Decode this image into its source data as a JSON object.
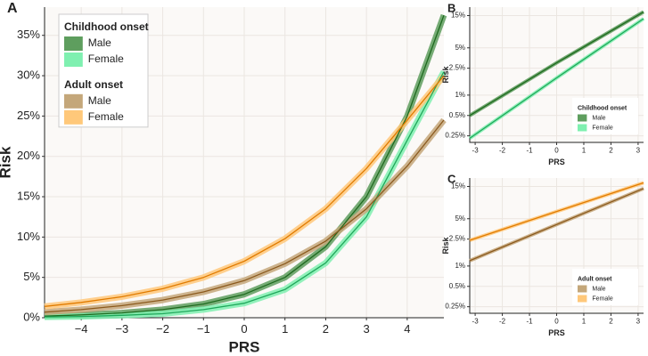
{
  "chart_data": [
    {
      "type": "line",
      "label": "A",
      "xlabel": "PRS",
      "ylabel": "Risk",
      "x": [
        -4.9,
        -4,
        -3,
        -2,
        -1,
        0,
        1,
        2,
        3,
        4,
        4.9
      ],
      "xlim": [
        -4.9,
        4.9
      ],
      "xticks": [
        {
          "value": -4,
          "label": "−4"
        },
        {
          "value": -3,
          "label": "−3"
        },
        {
          "value": -2,
          "label": "−2"
        },
        {
          "value": -1,
          "label": "−1"
        },
        0,
        1,
        2,
        3,
        4
      ],
      "ylim": [
        0,
        38.5
      ],
      "yticks": [
        {
          "value": 0,
          "label": "0%"
        },
        {
          "value": 5,
          "label": "5%"
        },
        {
          "value": 10,
          "label": "10%"
        },
        {
          "value": 15,
          "label": "15%"
        },
        {
          "value": 20,
          "label": "20%"
        },
        {
          "value": 25,
          "label": "25%"
        },
        {
          "value": 30,
          "label": "30%"
        },
        {
          "value": 35,
          "label": "35%"
        }
      ],
      "grid": true,
      "legend": "top-left",
      "series_groups": [
        {
          "title": "Childhood onset",
          "series": [
            {
              "name": "Male",
              "color": "#1f6b1f",
              "band_color": "#5e9e5e",
              "values": [
                0.2,
                0.35,
                0.6,
                1.0,
                1.7,
                2.9,
                5.0,
                8.8,
                15,
                25,
                37.5
              ]
            },
            {
              "name": "Female",
              "color": "#1fa85a",
              "band_color": "#7ff0b0",
              "values": [
                0.1,
                0.15,
                0.3,
                0.5,
                1.0,
                1.8,
                3.5,
                6.8,
                12.5,
                22,
                30.5
              ]
            }
          ]
        },
        {
          "title": "Adult onset",
          "series": [
            {
              "name": "Male",
              "color": "#8b5a1e",
              "band_color": "#c4a77a",
              "values": [
                0.7,
                1.0,
                1.5,
                2.2,
                3.2,
                4.6,
                6.7,
                9.5,
                13.5,
                18.8,
                24.5
              ]
            },
            {
              "name": "Female",
              "color": "#e07b00",
              "band_color": "#ffc87a",
              "values": [
                1.4,
                1.9,
                2.6,
                3.6,
                5.0,
                7.0,
                9.8,
                13.5,
                18.5,
                24.5,
                30
              ]
            }
          ]
        }
      ]
    },
    {
      "type": "line",
      "label": "B",
      "xlabel": "PRS",
      "ylabel": "Risk",
      "log_y": true,
      "x": [
        -3.2,
        0,
        3.2
      ],
      "xlim": [
        -3.2,
        3.2
      ],
      "xticks": [
        -3,
        -2,
        -1,
        0,
        1,
        2,
        3
      ],
      "ylim": [
        0.2,
        20
      ],
      "yticks": [
        {
          "value": 0.25,
          "label": "0.25%"
        },
        {
          "value": 0.5,
          "label": "0.5%"
        },
        {
          "value": 1,
          "label": "1%"
        },
        {
          "value": 2.5,
          "label": "2.5%"
        },
        {
          "value": 5,
          "label": "5%"
        },
        {
          "value": 15,
          "label": "15%"
        }
      ],
      "grid": true,
      "legend": "bottom-right",
      "series_groups": [
        {
          "title": "Childhood onset",
          "series": [
            {
              "name": "Male",
              "color": "#1f6b1f",
              "band_color": "#5e9e5e",
              "values": [
                0.5,
                3.0,
                17
              ]
            },
            {
              "name": "Female",
              "color": "#1fa85a",
              "band_color": "#7ff0b0",
              "values": [
                0.23,
                1.8,
                13.5
              ]
            }
          ]
        }
      ]
    },
    {
      "type": "line",
      "label": "C",
      "xlabel": "PRS",
      "ylabel": "Risk",
      "log_y": true,
      "x": [
        -3.2,
        0,
        3.2
      ],
      "xlim": [
        -3.2,
        3.2
      ],
      "xticks": [
        -3,
        -2,
        -1,
        0,
        1,
        2,
        3
      ],
      "ylim": [
        0.2,
        20
      ],
      "yticks": [
        {
          "value": 0.25,
          "label": "0.25%"
        },
        {
          "value": 0.5,
          "label": "0.5%"
        },
        {
          "value": 1,
          "label": "1%"
        },
        {
          "value": 2.5,
          "label": "2.5%"
        },
        {
          "value": 5,
          "label": "5%"
        },
        {
          "value": 15,
          "label": "15%"
        }
      ],
      "grid": true,
      "legend": "bottom-right",
      "series_groups": [
        {
          "title": "Adult onset",
          "series": [
            {
              "name": "Male",
              "color": "#8b5a1e",
              "band_color": "#c4a77a",
              "values": [
                1.2,
                4.1,
                14
              ]
            },
            {
              "name": "Female",
              "color": "#e07b00",
              "band_color": "#ffc87a",
              "values": [
                2.4,
                6.4,
                17
              ]
            }
          ]
        }
      ]
    }
  ]
}
